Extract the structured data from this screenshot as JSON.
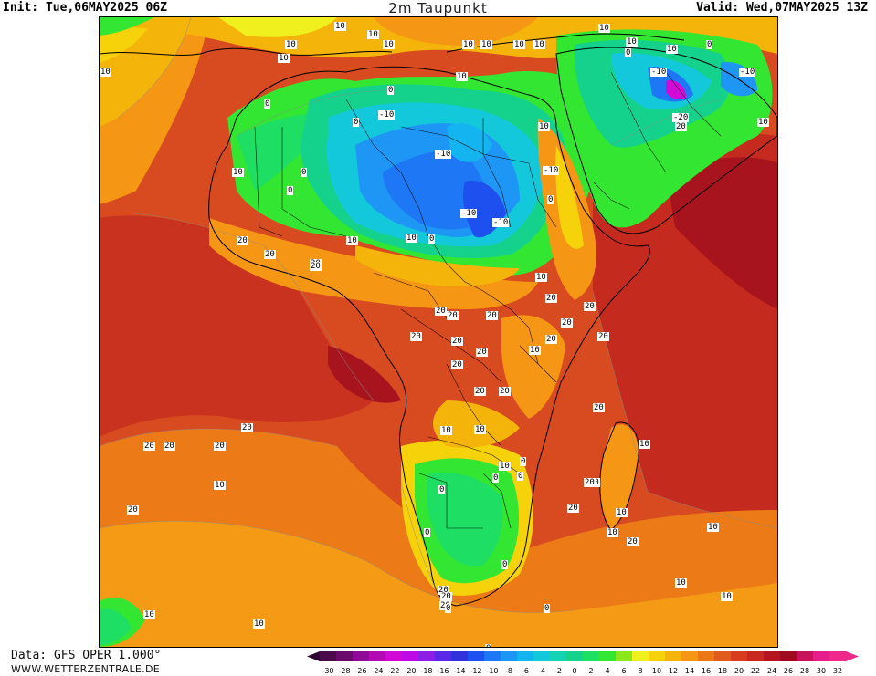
{
  "header": {
    "init": "Init: Tue,06MAY2025 06Z",
    "title": "2m Taupunkt",
    "valid": "Valid: Wed,07MAY2025 13Z"
  },
  "footer": {
    "data_source": "Data: GFS OPER 1.000°",
    "website": "WWW.WETTERZENTRALE.DE"
  },
  "colorbar": {
    "ticks": [
      "-30",
      "-28",
      "-26",
      "-24",
      "-22",
      "-20",
      "-18",
      "-16",
      "-14",
      "-12",
      "-10",
      "-8",
      "-6",
      "-4",
      "-2",
      "0",
      "2",
      "4",
      "6",
      "8",
      "10",
      "12",
      "14",
      "16",
      "18",
      "20",
      "22",
      "24",
      "26",
      "28",
      "30",
      "32"
    ],
    "colors": [
      "#4b0a4b",
      "#6a0a6a",
      "#8f0a96",
      "#b40ab4",
      "#d10ad8",
      "#c00ae6",
      "#8c1ee6",
      "#5a28e6",
      "#3232dc",
      "#1e50f0",
      "#1e78f5",
      "#1e96f5",
      "#14b4f0",
      "#14c8dc",
      "#14d2b4",
      "#14d28c",
      "#1ede64",
      "#32e632",
      "#8ce61e",
      "#f0f01e",
      "#f5d20a",
      "#f5b40a",
      "#f59614",
      "#eb7814",
      "#e15a1e",
      "#d73c1e",
      "#c8281e",
      "#b4141e",
      "#a00a1e",
      "#c8145a",
      "#e61e8c",
      "#f0288c"
    ]
  },
  "map": {
    "contour_labels": [
      "10",
      "10",
      "10",
      "10",
      "10",
      "10",
      "10",
      "10",
      "10",
      "10",
      "10",
      "0",
      "10",
      "10",
      "0",
      "10",
      "-10",
      "-10",
      "0",
      "0",
      "-20",
      "10",
      "20",
      "0",
      "-10",
      "10",
      "10",
      "0",
      "-10",
      "-10",
      "0",
      "10",
      "-10",
      "0",
      "-10",
      "0",
      "20",
      "20",
      "10",
      "10",
      "20",
      "20",
      "20",
      "20",
      "20",
      "20",
      "20",
      "20",
      "20",
      "20",
      "20",
      "20",
      "20",
      "20",
      "20",
      "20",
      "10",
      "10",
      "10",
      "10",
      "0",
      "0",
      "0",
      "0",
      "0",
      "0",
      "20",
      "20",
      "20",
      "20",
      "20",
      "20",
      "20",
      "10",
      "20",
      "20",
      "10",
      "10",
      "10",
      "10",
      "10",
      "10",
      "0",
      "0",
      "0",
      "20",
      "20",
      "10",
      "10",
      "20",
      "20"
    ]
  }
}
